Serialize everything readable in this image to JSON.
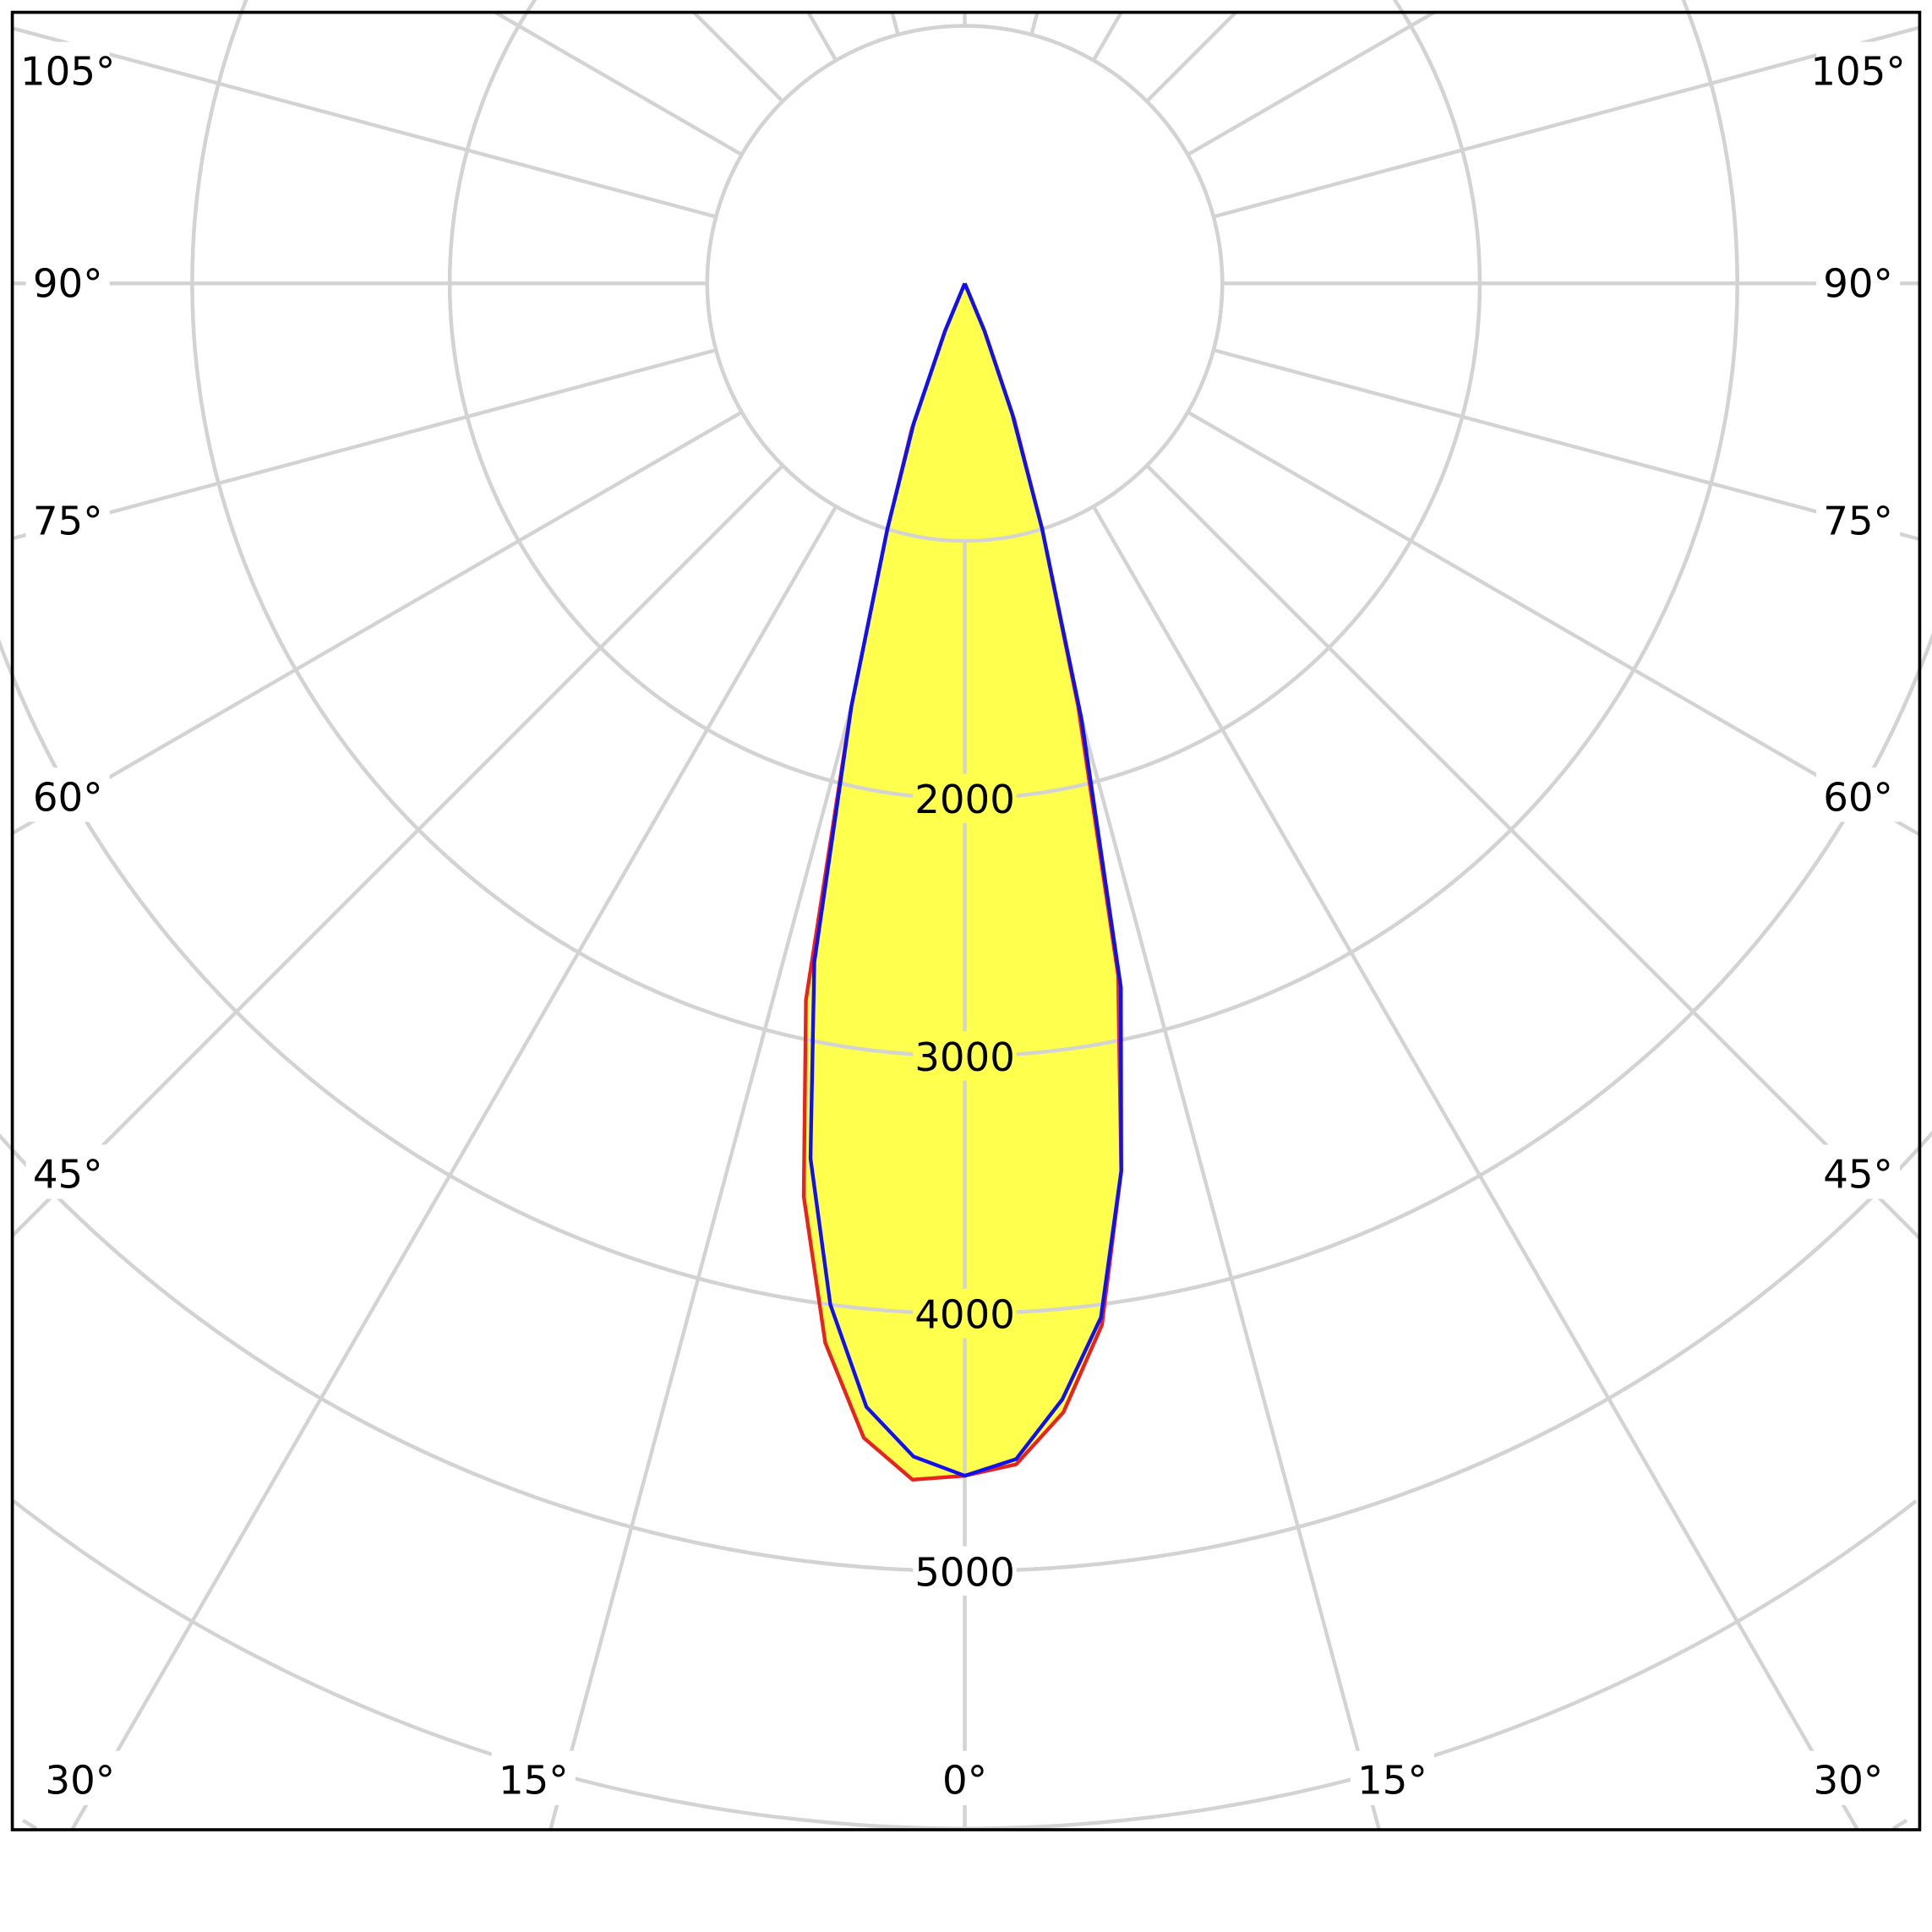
{
  "chart_data": {
    "type": "polar",
    "title": "",
    "angle_zero": "down",
    "angle_step_deg": 15,
    "radial_range": [
      0,
      7000
    ],
    "radial_step": 1000,
    "ring_labels": [
      "2000",
      "3000",
      "4000",
      "5000"
    ],
    "angle_labels": {
      "left": [
        "105°",
        "90°",
        "75°",
        "60°",
        "45°"
      ],
      "right": [
        "105°",
        "90°",
        "75°",
        "60°",
        "45°"
      ],
      "bottom": [
        "30°",
        "15°",
        "0°",
        "15°",
        "30°"
      ]
    },
    "grid": true,
    "fill_color": "#ffff4d",
    "grid_color": "#d3d3d3",
    "series": [
      {
        "color": "#e8231f",
        "angles": [
          -90,
          -25,
          -22.5,
          -20,
          -17.5,
          -15,
          -12.5,
          -10,
          -7.5,
          -5,
          -2.5,
          0,
          2.5,
          5,
          7.5,
          10,
          12.5,
          15,
          17.5,
          20,
          22.5,
          25,
          90
        ],
        "values": [
          0,
          0,
          200,
          600,
          1000,
          1700,
          2850,
          3600,
          4150,
          4500,
          4650,
          4630,
          4590,
          4400,
          4080,
          3500,
          2750,
          1700,
          1000,
          560,
          200,
          0,
          0
        ]
      },
      {
        "color": "#1010f0",
        "angles": [
          -90,
          -25,
          -22.5,
          -20,
          -17.5,
          -15,
          -12.5,
          -10,
          -7.5,
          -5,
          -2.5,
          0,
          2.5,
          5,
          7.5,
          10,
          12.5,
          15,
          17.5,
          20,
          22.5,
          25,
          90
        ],
        "values": [
          0,
          0,
          200,
          580,
          1000,
          1700,
          2700,
          3450,
          4000,
          4380,
          4560,
          4630,
          4570,
          4350,
          4050,
          3500,
          2800,
          1750,
          1000,
          540,
          200,
          0,
          0
        ]
      }
    ]
  }
}
